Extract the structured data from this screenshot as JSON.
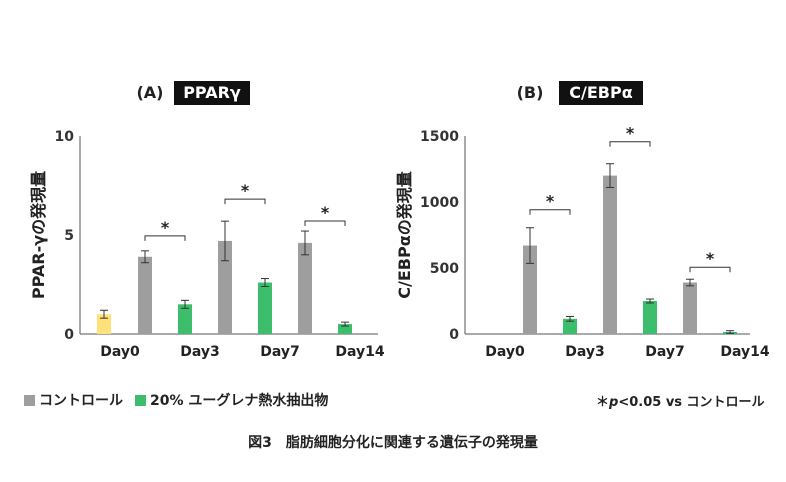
{
  "chart_data": [
    {
      "type": "bar",
      "panel_label": "(A)",
      "title": "PPARγ",
      "ylabel": "PPAR-γの発現量",
      "ylim": [
        0,
        10
      ],
      "yticks": [
        0,
        5,
        10
      ],
      "categories": [
        "Day0",
        "Day3",
        "Day7",
        "Day14"
      ],
      "series": [
        {
          "name": "day0",
          "color": "#FFE07A",
          "values": [
            1.0,
            null,
            null,
            null
          ],
          "errors": [
            0.2,
            null,
            null,
            null
          ]
        },
        {
          "name": "コントロール",
          "color": "#9E9E9E",
          "values": [
            null,
            3.9,
            4.7,
            4.6
          ],
          "errors": [
            null,
            0.3,
            1.0,
            0.6
          ]
        },
        {
          "name": "20% ユーグレナ熱水抽出物",
          "color": "#3DBE6C",
          "values": [
            null,
            1.5,
            2.6,
            0.5
          ],
          "errors": [
            null,
            0.2,
            0.2,
            0.1
          ]
        }
      ],
      "significance": [
        {
          "category": "Day3",
          "mark": "*"
        },
        {
          "category": "Day7",
          "mark": "*"
        },
        {
          "category": "Day14",
          "mark": "*"
        }
      ]
    },
    {
      "type": "bar",
      "panel_label": "(B)",
      "title": "C/EBPα",
      "ylabel": "C/EBPαの発現量",
      "ylim": [
        0,
        1500
      ],
      "yticks": [
        0,
        500,
        1000,
        1500
      ],
      "categories": [
        "Day0",
        "Day3",
        "Day7",
        "Day14"
      ],
      "series": [
        {
          "name": "day0",
          "color": "#FFE07A",
          "values": [
            0,
            null,
            null,
            null
          ],
          "errors": [
            0,
            null,
            null,
            null
          ]
        },
        {
          "name": "コントロール",
          "color": "#9E9E9E",
          "values": [
            null,
            670,
            1200,
            390
          ],
          "errors": [
            null,
            135,
            90,
            25
          ]
        },
        {
          "name": "20% ユーグレナ熱水抽出物",
          "color": "#3DBE6C",
          "values": [
            null,
            115,
            250,
            15
          ],
          "errors": [
            null,
            18,
            15,
            10
          ]
        }
      ],
      "significance": [
        {
          "category": "Day3",
          "mark": "*"
        },
        {
          "category": "Day7",
          "mark": "*"
        },
        {
          "category": "Day14",
          "mark": "*"
        }
      ]
    }
  ],
  "legend": {
    "control_label": "コントロール",
    "treated_label": "20% ユーグレナ熱水抽出物",
    "control_color": "#9E9E9E",
    "treated_color": "#3DBE6C"
  },
  "note": {
    "star": "＊",
    "p": "p",
    "rest": "<0.05 vs コントロール"
  },
  "caption": {
    "number": "図3",
    "text": "脂肪細胞分化に関連する遺伝子の発現量"
  }
}
